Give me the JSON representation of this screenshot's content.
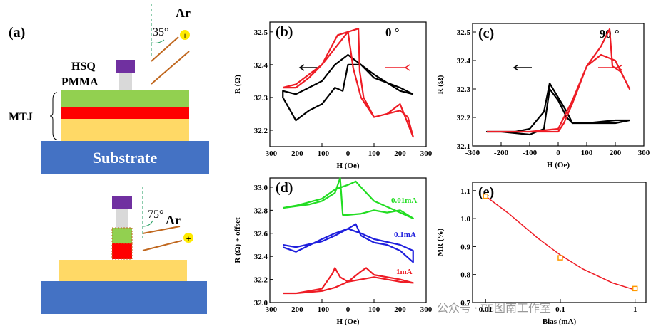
{
  "diagram": {
    "panel": "(a)",
    "top": {
      "gas": "Ar",
      "angle": "35°",
      "ion": "+",
      "hsq": "HSQ",
      "pmma": "PMMA",
      "mtj": "MTJ",
      "substrate": "Substrate"
    },
    "bottom": {
      "gas": "Ar",
      "angle": "75°",
      "ion": "+"
    }
  },
  "watermark": "公众号 · FE图南工作室",
  "chart_data": [
    {
      "type": "line",
      "panel": "(b)",
      "annotation": "0 °",
      "xlabel": "H (Oe)",
      "ylabel": "R (Ω)",
      "xlim": [
        -300,
        300
      ],
      "xticks": [
        -300,
        -200,
        -100,
        0,
        100,
        200,
        300
      ],
      "ylim": [
        32.15,
        32.53
      ],
      "yticks": [
        32.2,
        32.3,
        32.4,
        32.5
      ],
      "series": [
        {
          "color": "#000000",
          "x": [
            250,
            200,
            100,
            50,
            0,
            -50,
            -100,
            -150,
            -200,
            -250,
            -250,
            -200,
            -150,
            -100,
            -50,
            -20,
            0,
            50,
            100,
            200,
            250
          ],
          "values": [
            32.31,
            32.33,
            32.36,
            32.4,
            32.43,
            32.4,
            32.35,
            32.33,
            32.31,
            32.32,
            32.3,
            32.23,
            32.26,
            32.28,
            32.33,
            32.32,
            32.4,
            32.4,
            32.37,
            32.32,
            32.31
          ]
        },
        {
          "color": "#ee1c25",
          "x": [
            -250,
            -200,
            -150,
            -100,
            -50,
            0,
            40,
            45,
            60,
            100,
            150,
            200,
            230,
            250,
            250,
            200,
            150,
            100,
            50,
            20,
            0,
            -40,
            -100,
            -200,
            -250
          ],
          "values": [
            32.33,
            32.33,
            32.36,
            32.4,
            32.45,
            32.5,
            32.51,
            32.38,
            32.3,
            32.24,
            32.25,
            32.26,
            32.24,
            32.18,
            32.18,
            32.28,
            32.25,
            32.24,
            32.3,
            32.39,
            32.5,
            32.49,
            32.4,
            32.34,
            32.33
          ]
        }
      ]
    },
    {
      "type": "line",
      "panel": "(c)",
      "annotation": "90 °",
      "xlabel": "H (Oe)",
      "ylabel": "R (Ω)",
      "xlim": [
        -300,
        300
      ],
      "xticks": [
        -300,
        -200,
        -100,
        0,
        100,
        200,
        300
      ],
      "ylim": [
        32.1,
        32.53
      ],
      "yticks": [
        32.1,
        32.2,
        32.3,
        32.4,
        32.5
      ],
      "series": [
        {
          "color": "#000000",
          "x": [
            250,
            200,
            100,
            50,
            30,
            0,
            -30,
            -50,
            -100,
            -150,
            -200,
            -250,
            -250,
            -200,
            -100,
            -50,
            -30,
            0,
            30,
            50,
            100,
            200,
            250
          ],
          "values": [
            32.19,
            32.18,
            32.18,
            32.18,
            32.22,
            32.27,
            32.32,
            32.22,
            32.16,
            32.15,
            32.15,
            32.15,
            32.15,
            32.15,
            32.14,
            32.16,
            32.3,
            32.26,
            32.2,
            32.18,
            32.18,
            32.19,
            32.19
          ]
        },
        {
          "color": "#ee1c25",
          "x": [
            -250,
            -200,
            -100,
            0,
            20,
            50,
            100,
            150,
            180,
            190,
            220,
            250,
            250,
            220,
            200,
            150,
            100,
            50,
            0,
            -100,
            -250
          ],
          "values": [
            32.15,
            32.15,
            32.15,
            32.15,
            32.18,
            32.25,
            32.38,
            32.45,
            32.51,
            32.38,
            32.36,
            32.3,
            32.3,
            32.36,
            32.4,
            32.42,
            32.38,
            32.26,
            32.16,
            32.15,
            32.15
          ]
        }
      ]
    },
    {
      "type": "line",
      "panel": "(d)",
      "xlabel": "H (Oe)",
      "ylabel": "R (Ω) + offset",
      "xlim": [
        -300,
        300
      ],
      "xticks": [
        -300,
        -200,
        -100,
        0,
        100,
        200,
        300
      ],
      "ylim": [
        32.0,
        33.08
      ],
      "yticks": [
        {
          "value": 32,
          "label": "32.0"
        },
        32.2,
        32.4,
        32.6,
        32.8,
        {
          "value": 33,
          "label": "33.0"
        }
      ],
      "series": [
        {
          "name": "0.01mA",
          "color": "#22dd22",
          "x": [
            -250,
            -150,
            -100,
            -50,
            -30,
            -20,
            0,
            50,
            100,
            150,
            200,
            250,
            250,
            200,
            100,
            50,
            30,
            0,
            -50,
            -100,
            -200,
            -250
          ],
          "values": [
            32.82,
            32.85,
            32.88,
            32.95,
            33.08,
            32.76,
            32.76,
            32.77,
            32.8,
            32.78,
            32.8,
            32.73,
            32.73,
            32.78,
            32.88,
            33.0,
            33.05,
            33.02,
            32.98,
            32.9,
            32.84,
            32.82
          ]
        },
        {
          "name": "0.1mA",
          "color": "#1f1fdd",
          "x": [
            -250,
            -200,
            -100,
            -50,
            0,
            30,
            50,
            100,
            150,
            200,
            250,
            250,
            200,
            100,
            50,
            0,
            -50,
            -100,
            -200,
            -250
          ],
          "values": [
            32.5,
            32.48,
            32.53,
            32.58,
            32.64,
            32.68,
            32.58,
            32.52,
            32.5,
            32.45,
            32.35,
            32.45,
            32.5,
            32.55,
            32.6,
            32.64,
            32.6,
            32.55,
            32.44,
            32.48
          ]
        },
        {
          "name": "1mA",
          "color": "#ee1c25",
          "x": [
            -250,
            -200,
            -100,
            -60,
            -50,
            -30,
            0,
            50,
            100,
            150,
            200,
            250,
            250,
            200,
            100,
            70,
            50,
            0,
            -50,
            -100,
            -200,
            -250
          ],
          "values": [
            32.08,
            32.08,
            32.12,
            32.25,
            32.3,
            32.22,
            32.18,
            32.2,
            32.22,
            32.2,
            32.18,
            32.17,
            32.17,
            32.2,
            32.24,
            32.3,
            32.27,
            32.18,
            32.13,
            32.1,
            32.08,
            32.08
          ]
        }
      ]
    },
    {
      "type": "scatter",
      "panel": "(e)",
      "xlabel": "Bias (mA)",
      "ylabel": "MR (%)",
      "xlog": true,
      "xlim": [
        0.0067,
        1.4
      ],
      "xticks": [
        0.01,
        0.1,
        1
      ],
      "ylim": [
        0.7,
        1.13
      ],
      "yticks": [
        0.7,
        0.8,
        0.9,
        {
          "value": 1,
          "label": "1.0"
        },
        1.1
      ],
      "series": [
        {
          "color": "#ff9900",
          "x": [
            0.01,
            0.1,
            1
          ],
          "values": [
            1.08,
            0.86,
            0.75
          ]
        }
      ],
      "fit": {
        "color": "#ee1c25",
        "x": [
          0.01,
          0.02,
          0.05,
          0.1,
          0.2,
          0.5,
          1
        ],
        "values": [
          1.08,
          1.02,
          0.93,
          0.87,
          0.82,
          0.77,
          0.745
        ]
      }
    }
  ]
}
